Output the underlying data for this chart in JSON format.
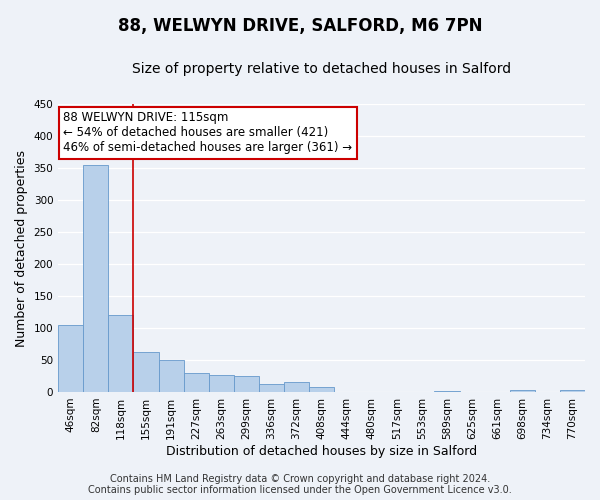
{
  "title": "88, WELWYN DRIVE, SALFORD, M6 7PN",
  "subtitle": "Size of property relative to detached houses in Salford",
  "xlabel": "Distribution of detached houses by size in Salford",
  "ylabel": "Number of detached properties",
  "bar_labels": [
    "46sqm",
    "82sqm",
    "118sqm",
    "155sqm",
    "191sqm",
    "227sqm",
    "263sqm",
    "299sqm",
    "336sqm",
    "372sqm",
    "408sqm",
    "444sqm",
    "480sqm",
    "517sqm",
    "553sqm",
    "589sqm",
    "625sqm",
    "661sqm",
    "698sqm",
    "734sqm",
    "770sqm"
  ],
  "bar_heights": [
    105,
    355,
    120,
    62,
    50,
    30,
    26,
    25,
    12,
    16,
    7,
    0,
    0,
    0,
    0,
    2,
    0,
    0,
    3,
    0,
    3
  ],
  "bar_color": "#b8d0ea",
  "bar_edge_color": "#6699cc",
  "vline_x_index": 2,
  "vline_color": "#cc0000",
  "ylim": [
    0,
    450
  ],
  "yticks": [
    0,
    50,
    100,
    150,
    200,
    250,
    300,
    350,
    400,
    450
  ],
  "annotation_text": "88 WELWYN DRIVE: 115sqm\n← 54% of detached houses are smaller (421)\n46% of semi-detached houses are larger (361) →",
  "annotation_box_facecolor": "#ffffff",
  "annotation_box_edgecolor": "#cc0000",
  "footer1": "Contains HM Land Registry data © Crown copyright and database right 2024.",
  "footer2": "Contains public sector information licensed under the Open Government Licence v3.0.",
  "title_fontsize": 12,
  "subtitle_fontsize": 10,
  "axis_label_fontsize": 9,
  "tick_fontsize": 7.5,
  "annotation_fontsize": 8.5,
  "footer_fontsize": 7,
  "background_color": "#eef2f8"
}
